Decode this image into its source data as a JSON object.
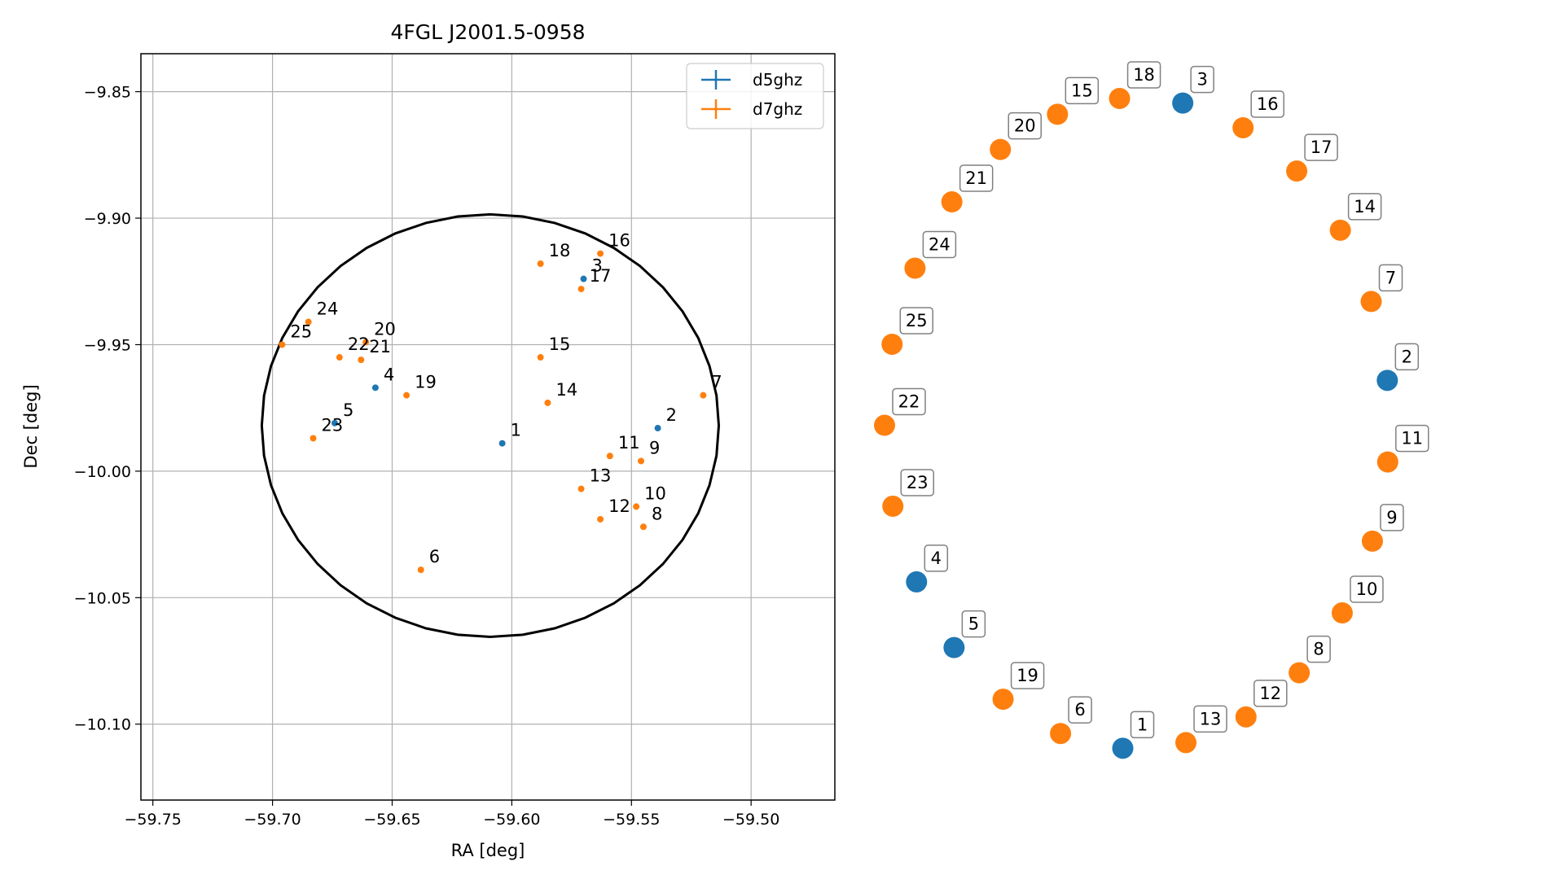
{
  "chart_data": [
    {
      "type": "scatter",
      "title": "4FGL J2001.5-0958",
      "xlabel": "RA [deg]",
      "ylabel": "Dec [deg]",
      "xlim": [
        -59.755,
        -59.465
      ],
      "ylim": [
        -10.13,
        -9.835
      ],
      "x_ticks": [
        -59.75,
        -59.7,
        -59.65,
        -59.6,
        -59.55,
        -59.5
      ],
      "x_tick_labels": [
        "−59.75",
        "−59.70",
        "−59.65",
        "−59.60",
        "−59.55",
        "−59.50"
      ],
      "y_ticks": [
        -9.85,
        -9.9,
        -9.95,
        -10.0,
        -10.05,
        -10.1
      ],
      "y_tick_labels": [
        "−9.85",
        "−9.90",
        "−9.95",
        "−10.00",
        "−10.05",
        "−10.10"
      ],
      "grid": true,
      "legend_position": "top-right",
      "colors": {
        "d5ghz": "#1f77b4",
        "d7ghz": "#ff7f0e"
      },
      "ellipse": {
        "center_ra": -59.609,
        "center_dec": -9.982,
        "semi_ra": 0.0955,
        "semi_dec": 0.0835,
        "color": "#000000"
      },
      "series": [
        {
          "name": "d5ghz",
          "points": [
            {
              "label": "1",
              "ra": -59.604,
              "dec": -9.989
            },
            {
              "label": "2",
              "ra": -59.539,
              "dec": -9.983
            },
            {
              "label": "3",
              "ra": -59.57,
              "dec": -9.924
            },
            {
              "label": "4",
              "ra": -59.657,
              "dec": -9.967
            },
            {
              "label": "5",
              "ra": -59.674,
              "dec": -9.981
            }
          ]
        },
        {
          "name": "d7ghz",
          "points": [
            {
              "label": "6",
              "ra": -59.638,
              "dec": -10.039
            },
            {
              "label": "7",
              "ra": -59.52,
              "dec": -9.97
            },
            {
              "label": "8",
              "ra": -59.545,
              "dec": -10.022
            },
            {
              "label": "9",
              "ra": -59.546,
              "dec": -9.996
            },
            {
              "label": "10",
              "ra": -59.548,
              "dec": -10.014
            },
            {
              "label": "11",
              "ra": -59.559,
              "dec": -9.994
            },
            {
              "label": "12",
              "ra": -59.563,
              "dec": -10.019
            },
            {
              "label": "13",
              "ra": -59.571,
              "dec": -10.007
            },
            {
              "label": "14",
              "ra": -59.585,
              "dec": -9.973
            },
            {
              "label": "15",
              "ra": -59.588,
              "dec": -9.955
            },
            {
              "label": "16",
              "ra": -59.563,
              "dec": -9.914
            },
            {
              "label": "17",
              "ra": -59.571,
              "dec": -9.928
            },
            {
              "label": "18",
              "ra": -59.588,
              "dec": -9.918
            },
            {
              "label": "19",
              "ra": -59.644,
              "dec": -9.97
            },
            {
              "label": "20",
              "ra": -59.661,
              "dec": -9.949
            },
            {
              "label": "21",
              "ra": -59.663,
              "dec": -9.956
            },
            {
              "label": "22",
              "ra": -59.672,
              "dec": -9.955
            },
            {
              "label": "23",
              "ra": -59.683,
              "dec": -9.987
            },
            {
              "label": "24",
              "ra": -59.685,
              "dec": -9.941
            },
            {
              "label": "25",
              "ra": -59.696,
              "dec": -9.95
            }
          ]
        }
      ]
    },
    {
      "type": "scatter",
      "title": "",
      "points": [
        {
          "label": "18",
          "series": "d7ghz"
        },
        {
          "label": "3",
          "series": "d5ghz"
        },
        {
          "label": "16",
          "series": "d7ghz"
        },
        {
          "label": "17",
          "series": "d7ghz"
        },
        {
          "label": "14",
          "series": "d7ghz"
        },
        {
          "label": "7",
          "series": "d7ghz"
        },
        {
          "label": "2",
          "series": "d5ghz"
        },
        {
          "label": "11",
          "series": "d7ghz"
        },
        {
          "label": "9",
          "series": "d7ghz"
        },
        {
          "label": "10",
          "series": "d7ghz"
        },
        {
          "label": "8",
          "series": "d7ghz"
        },
        {
          "label": "12",
          "series": "d7ghz"
        },
        {
          "label": "13",
          "series": "d7ghz"
        },
        {
          "label": "1",
          "series": "d5ghz"
        },
        {
          "label": "6",
          "series": "d7ghz"
        },
        {
          "label": "19",
          "series": "d7ghz"
        },
        {
          "label": "5",
          "series": "d5ghz"
        },
        {
          "label": "4",
          "series": "d5ghz"
        },
        {
          "label": "23",
          "series": "d7ghz"
        },
        {
          "label": "22",
          "series": "d7ghz"
        },
        {
          "label": "25",
          "series": "d7ghz"
        },
        {
          "label": "24",
          "series": "d7ghz"
        },
        {
          "label": "21",
          "series": "d7ghz"
        },
        {
          "label": "20",
          "series": "d7ghz"
        },
        {
          "label": "15",
          "series": "d7ghz"
        }
      ]
    }
  ]
}
